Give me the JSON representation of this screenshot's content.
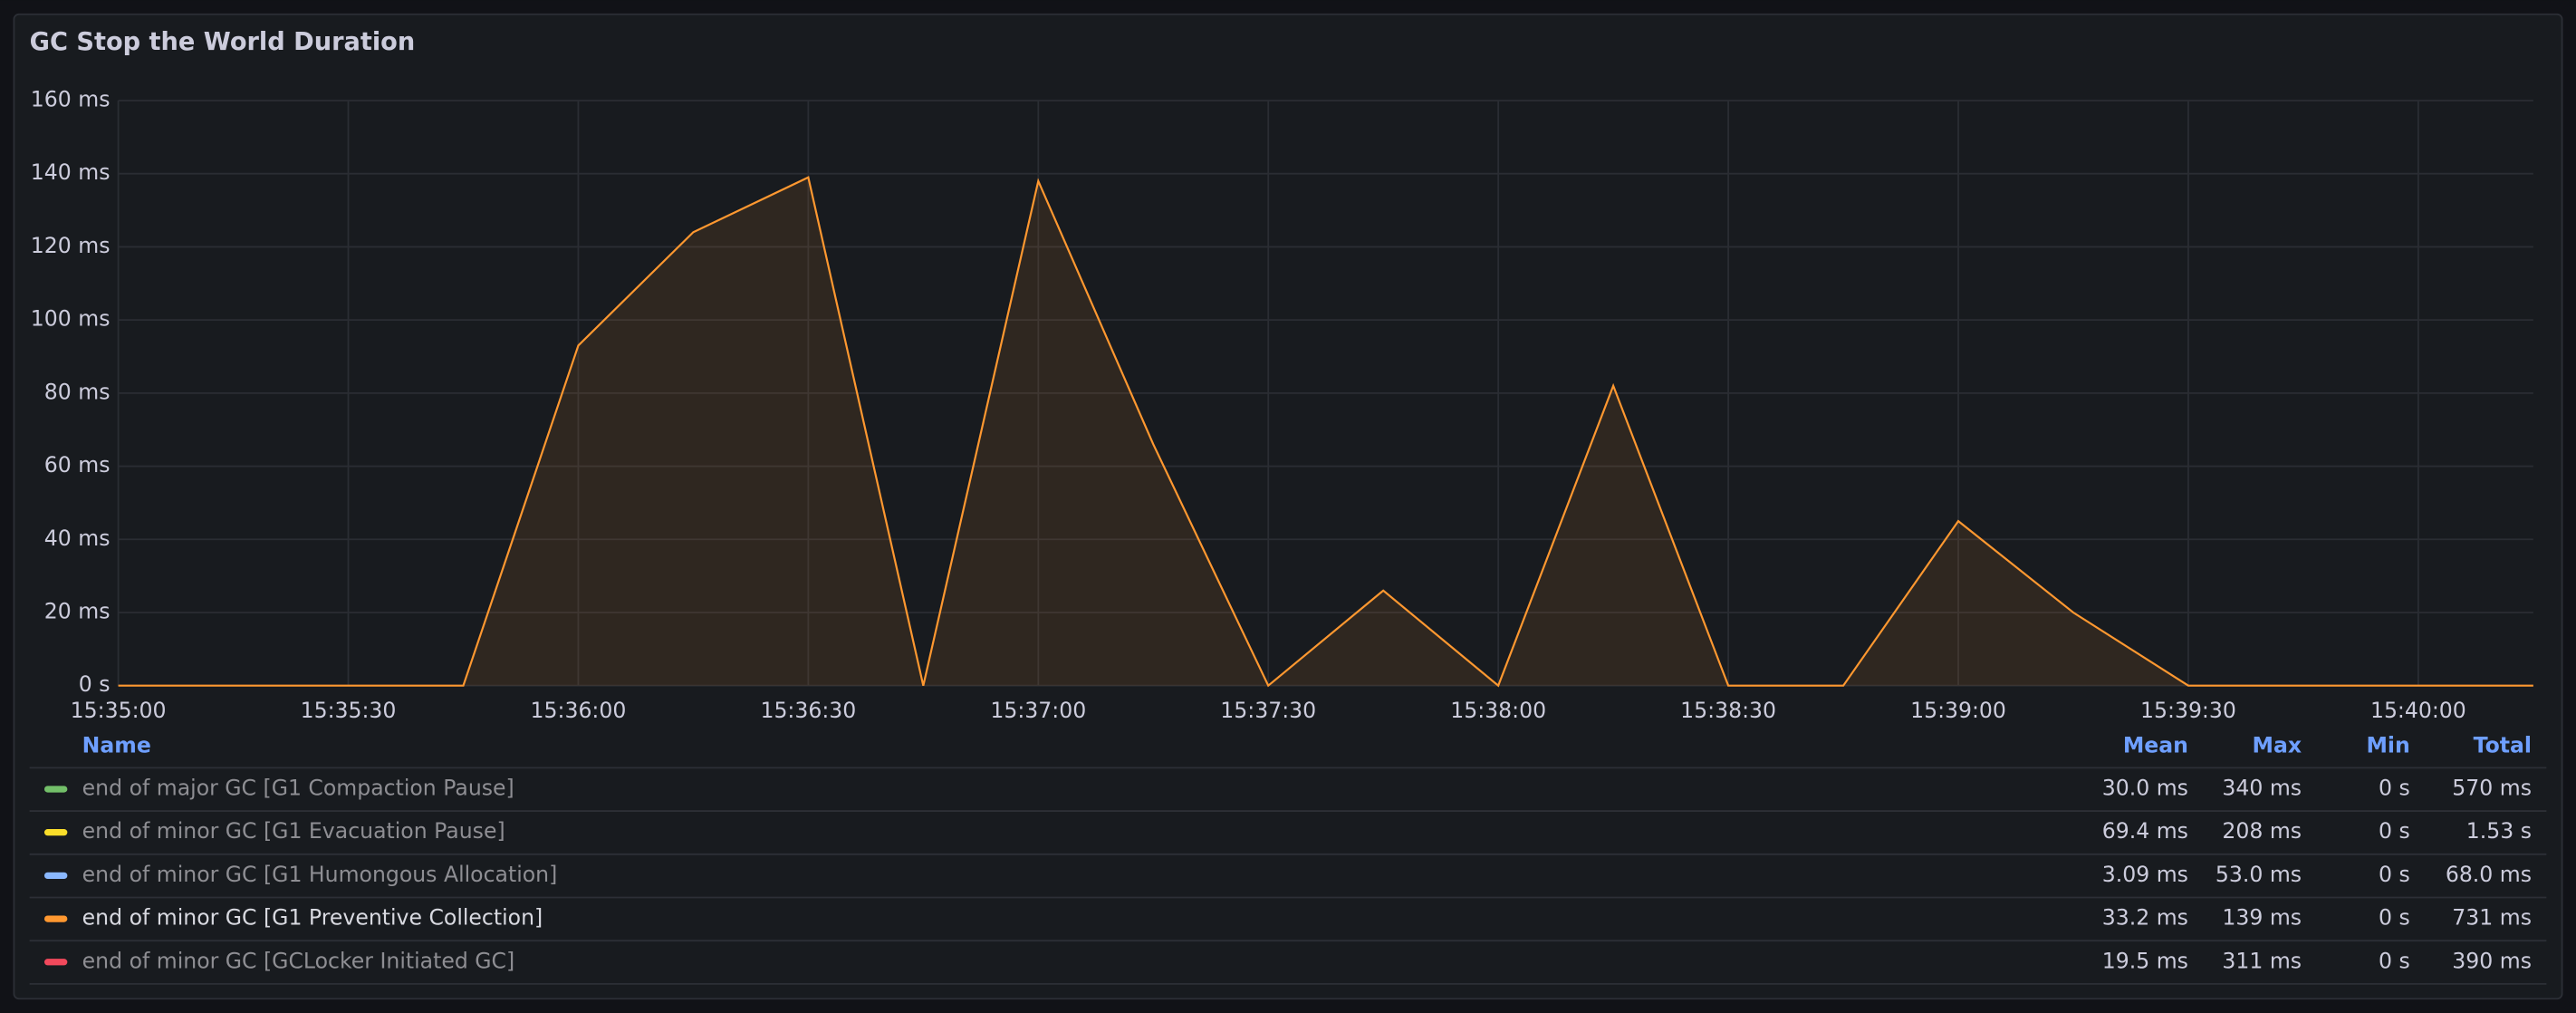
{
  "chart_data": {
    "type": "area",
    "title": "GC Stop the World Duration",
    "x": [
      "15:35:00",
      "15:35:15",
      "15:35:30",
      "15:35:45",
      "15:36:00",
      "15:36:15",
      "15:36:30",
      "15:36:45",
      "15:37:00",
      "15:37:15",
      "15:37:30",
      "15:37:45",
      "15:38:00",
      "15:38:15",
      "15:38:30",
      "15:38:45",
      "15:39:00",
      "15:39:15",
      "15:39:30",
      "15:39:45",
      "15:40:00",
      "15:40:15"
    ],
    "xlim": [
      "15:35:00",
      "15:40:15"
    ],
    "xticks": [
      "15:35:00",
      "15:35:30",
      "15:36:00",
      "15:36:30",
      "15:37:00",
      "15:37:30",
      "15:38:00",
      "15:38:30",
      "15:39:00",
      "15:39:30",
      "15:40:00"
    ],
    "ylim": [
      0,
      160
    ],
    "yticks": [
      {
        "value": 0,
        "label": "0 s"
      },
      {
        "value": 20,
        "label": "20 ms"
      },
      {
        "value": 40,
        "label": "40 ms"
      },
      {
        "value": 60,
        "label": "60 ms"
      },
      {
        "value": 80,
        "label": "80 ms"
      },
      {
        "value": 100,
        "label": "100 ms"
      },
      {
        "value": 120,
        "label": "120 ms"
      },
      {
        "value": 140,
        "label": "140 ms"
      },
      {
        "value": 160,
        "label": "160 ms"
      }
    ],
    "grid": true,
    "series": [
      {
        "name": "end of major GC [G1 Compaction Pause]",
        "color": "#73BF69",
        "hidden": true
      },
      {
        "name": "end of minor GC [G1 Evacuation Pause]",
        "color": "#FADE2A",
        "hidden": true
      },
      {
        "name": "end of minor GC [G1 Humongous Allocation]",
        "color": "#8AB8FF",
        "hidden": true
      },
      {
        "name": "end of minor GC [G1 Preventive Collection]",
        "color": "#FF9830",
        "hidden": false,
        "values": [
          0,
          0,
          0,
          0,
          93,
          124,
          139,
          0,
          138,
          66,
          0,
          26,
          0,
          82,
          0,
          0,
          45,
          20,
          0,
          0,
          0,
          0
        ]
      },
      {
        "name": "end of minor GC [GCLocker Initiated GC]",
        "color": "#F2495C",
        "hidden": true
      }
    ],
    "legend": {
      "columns": [
        "Name",
        "Mean",
        "Max",
        "Min",
        "Total"
      ],
      "rows": [
        [
          "30.0 ms",
          "340 ms",
          "0 s",
          "570 ms"
        ],
        [
          "69.4 ms",
          "208 ms",
          "0 s",
          "1.53 s"
        ],
        [
          "3.09 ms",
          "53.0 ms",
          "0 s",
          "68.0 ms"
        ],
        [
          "33.2 ms",
          "139 ms",
          "0 s",
          "731 ms"
        ],
        [
          "19.5 ms",
          "311 ms",
          "0 s",
          "390 ms"
        ]
      ]
    }
  }
}
